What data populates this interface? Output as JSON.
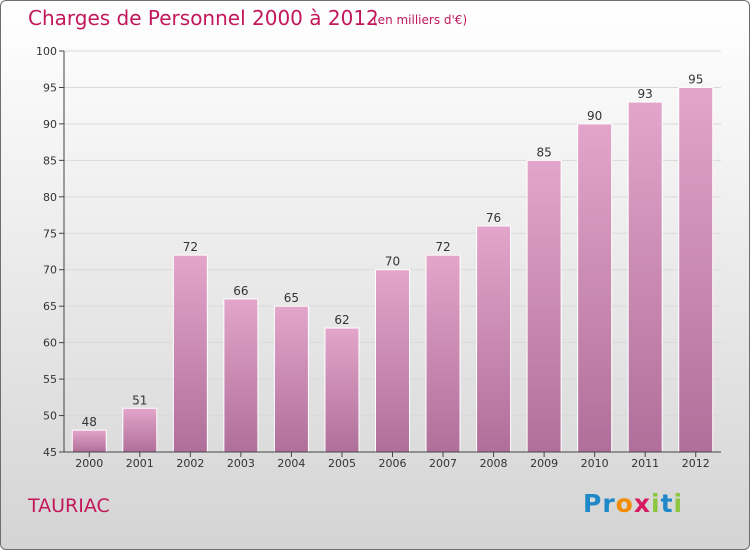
{
  "title": "Charges de Personnel 2000 à 2012",
  "subtitle": "(en milliers d'€)",
  "place": "TAURIAC",
  "logo": {
    "letters": [
      "P",
      "r",
      "o",
      "x",
      "i",
      "t",
      "i"
    ],
    "colors": [
      "#1e88c8",
      "#1e88c8",
      "#f28c00",
      "#d81b60",
      "#8cc63f",
      "#1e88c8",
      "#8cc63f"
    ]
  },
  "colors": {
    "title": "#c2185b",
    "bar_top": "#e3a5ca",
    "bar_bottom": "#b06f9a",
    "axis": "#444444",
    "grid": "#d9d9d9"
  },
  "chart_data": {
    "type": "bar",
    "title": "Charges de Personnel 2000 à 2012",
    "subtitle": "(en milliers d'€)",
    "categories": [
      "2000",
      "2001",
      "2002",
      "2003",
      "2004",
      "2005",
      "2006",
      "2007",
      "2008",
      "2009",
      "2010",
      "2011",
      "2012"
    ],
    "values": [
      48,
      51,
      72,
      66,
      65,
      62,
      70,
      72,
      76,
      85,
      90,
      93,
      95
    ],
    "xlabel": "",
    "ylabel": "",
    "ylim": [
      45,
      100
    ],
    "yticks": [
      45,
      50,
      55,
      60,
      65,
      70,
      75,
      80,
      85,
      90,
      95,
      100
    ],
    "grid": true,
    "data_labels": true
  }
}
